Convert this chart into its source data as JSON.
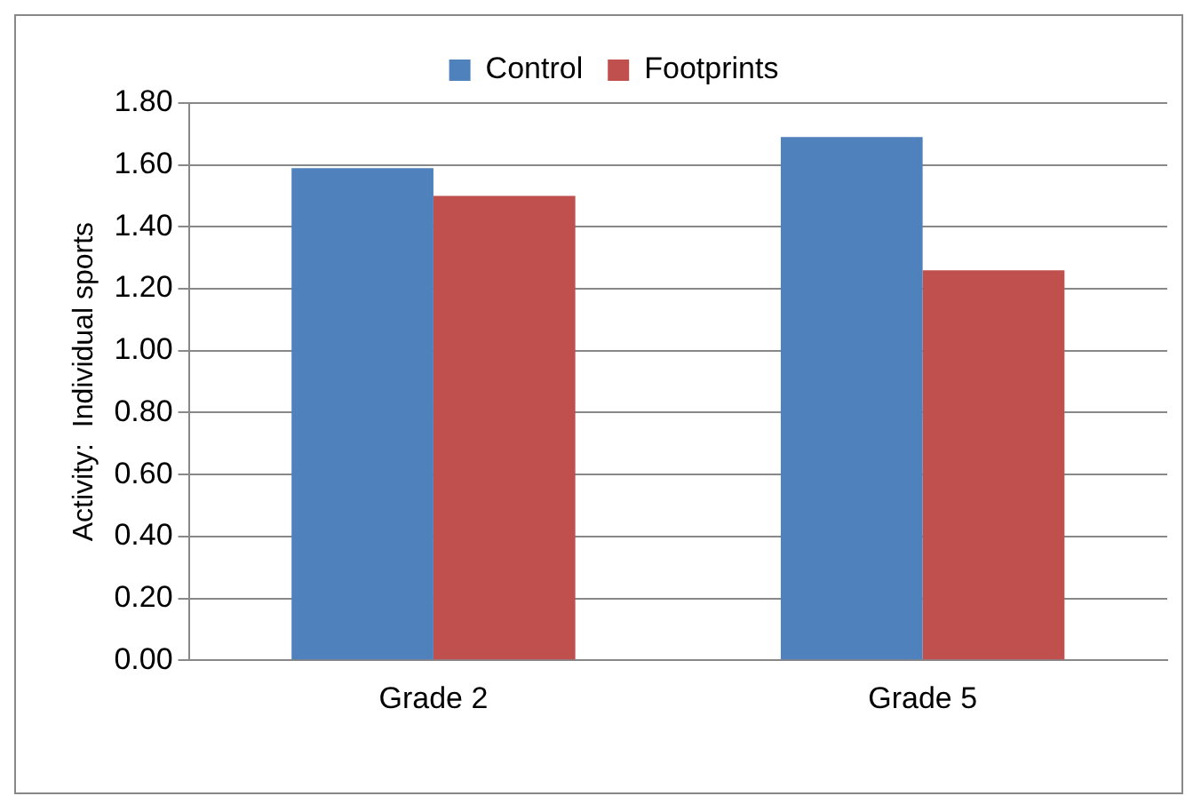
{
  "chart_data": {
    "type": "bar",
    "ylabel": "Activity:  Individual sports",
    "categories": [
      "Grade 2",
      "Grade 5"
    ],
    "series": [
      {
        "name": "Control",
        "color": "#4f81bd",
        "values": [
          1.59,
          1.69
        ]
      },
      {
        "name": "Footprints",
        "color": "#c0504d",
        "values": [
          1.5,
          1.26
        ]
      }
    ],
    "ylim": [
      0,
      1.8
    ],
    "yticks": [
      {
        "value": 0,
        "label": "0.00"
      },
      {
        "value": 0.2,
        "label": "0.20"
      },
      {
        "value": 0.4,
        "label": "0.40"
      },
      {
        "value": 0.6,
        "label": "0.60"
      },
      {
        "value": 0.8,
        "label": "0.80"
      },
      {
        "value": 1,
        "label": "1.00"
      },
      {
        "value": 1.2,
        "label": "1.20"
      },
      {
        "value": 1.4,
        "label": "1.40"
      },
      {
        "value": 1.6,
        "label": "1.60"
      },
      {
        "value": 1.8,
        "label": "1.80"
      }
    ],
    "grid": "y",
    "legend": "top"
  }
}
